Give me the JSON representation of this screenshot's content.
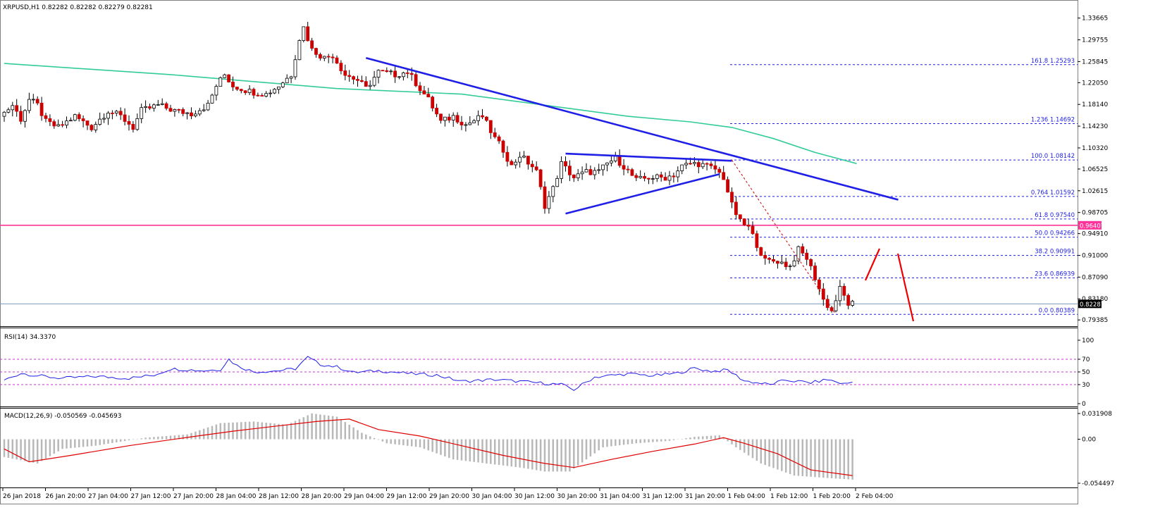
{
  "chart_title": "XRPUSD,H1  0.82282 0.82282 0.82279 0.82281",
  "rsi_title": "RSI(14) 34.3370",
  "macd_title": "MACD(12,26,9) -0.050569 -0.045693",
  "colors": {
    "bull": "#ffffff",
    "bear": "#cc0000",
    "wick": "#000000",
    "ma": "#33cc99",
    "trendline": "#1f1fe6",
    "fib": "#1f1fe6",
    "support": "#ff3399",
    "current": "#7799bb",
    "rsi": "#1f1fe6",
    "rsi_levels": "#cc33cc",
    "macd_hist": "#b8b8b8",
    "macd_signal": "#e00000",
    "arrow": "#ee0000"
  },
  "price_axis": {
    "ticks": [
      "1.33665",
      "1.29755",
      "1.25845",
      "1.22050",
      "1.18140",
      "1.14230",
      "1.10320",
      "1.06525",
      "1.02615",
      "0.98705",
      "0.94910",
      "0.91000",
      "0.87090",
      "0.83180",
      "0.79385"
    ],
    "support_label": "0.96407",
    "current_label": "0.82281"
  },
  "fib_levels": [
    {
      "label": "161.8  1.25293",
      "value": 1.25293
    },
    {
      "label": "1.236  1.14692",
      "value": 1.14692
    },
    {
      "label": "100.0  1.08142",
      "value": 1.08142
    },
    {
      "label": "0.764  1.01592",
      "value": 1.01592
    },
    {
      "label": "61.8  0.97540",
      "value": 0.9754
    },
    {
      "label": "50.0  0.94266",
      "value": 0.94266
    },
    {
      "label": "38.2  0.90991",
      "value": 0.90991
    },
    {
      "label": "23.6  0.86939",
      "value": 0.86939
    },
    {
      "label": "0.0  0.80389",
      "value": 0.80389
    }
  ],
  "time_labels": [
    "26 Jan 2018",
    "26 Jan 20:00",
    "27 Jan 04:00",
    "27 Jan 12:00",
    "27 Jan 20:00",
    "28 Jan 04:00",
    "28 Jan 12:00",
    "28 Jan 20:00",
    "29 Jan 04:00",
    "29 Jan 12:00",
    "29 Jan 20:00",
    "30 Jan 04:00",
    "30 Jan 12:00",
    "30 Jan 20:00",
    "31 Jan 04:00",
    "31 Jan 12:00",
    "31 Jan 20:00",
    "1 Feb 04:00",
    "1 Feb 12:00",
    "1 Feb 20:00",
    "2 Feb 04:00"
  ],
  "rsi_axis": [
    "100",
    "70",
    "50",
    "30",
    "0"
  ],
  "macd_axis": [
    "0.031908",
    "0.00",
    "-0.054497"
  ],
  "chart_data": {
    "type": "candlestick",
    "symbol": "XRPUSD",
    "timeframe": "H1",
    "ylim": [
      0.7865,
      1.3565
    ],
    "anchors": [
      [
        0,
        1.16
      ],
      [
        3,
        1.18
      ],
      [
        5,
        1.155
      ],
      [
        7,
        1.19
      ],
      [
        9,
        1.18
      ],
      [
        11,
        1.15
      ],
      [
        14,
        1.14
      ],
      [
        18,
        1.16
      ],
      [
        22,
        1.14
      ],
      [
        26,
        1.17
      ],
      [
        29,
        1.16
      ],
      [
        32,
        1.14
      ],
      [
        34,
        1.17
      ],
      [
        38,
        1.18
      ],
      [
        42,
        1.17
      ],
      [
        46,
        1.165
      ],
      [
        50,
        1.18
      ],
      [
        52,
        1.215
      ],
      [
        54,
        1.235
      ],
      [
        56,
        1.215
      ],
      [
        60,
        1.205
      ],
      [
        64,
        1.2
      ],
      [
        67,
        1.215
      ],
      [
        70,
        1.235
      ],
      [
        72,
        1.3
      ],
      [
        73,
        1.32
      ],
      [
        75,
        1.28
      ],
      [
        78,
        1.265
      ],
      [
        80,
        1.27
      ],
      [
        83,
        1.235
      ],
      [
        86,
        1.225
      ],
      [
        88,
        1.21
      ],
      [
        91,
        1.24
      ],
      [
        95,
        1.235
      ],
      [
        98,
        1.24
      ],
      [
        100,
        1.22
      ],
      [
        103,
        1.19
      ],
      [
        106,
        1.15
      ],
      [
        109,
        1.16
      ],
      [
        112,
        1.145
      ],
      [
        116,
        1.16
      ],
      [
        119,
        1.12
      ],
      [
        121,
        1.1
      ],
      [
        123,
        1.07
      ],
      [
        125,
        1.09
      ],
      [
        128,
        1.07
      ],
      [
        129,
        1.06
      ],
      [
        131,
        1.0
      ],
      [
        133,
        1.03
      ],
      [
        135,
        1.075
      ],
      [
        138,
        1.05
      ],
      [
        141,
        1.06
      ],
      [
        144,
        1.06
      ],
      [
        146,
        1.075
      ],
      [
        148,
        1.085
      ],
      [
        150,
        1.07
      ],
      [
        153,
        1.045
      ],
      [
        156,
        1.05
      ],
      [
        160,
        1.05
      ],
      [
        162,
        1.055
      ],
      [
        164,
        1.07
      ],
      [
        166,
        1.075
      ],
      [
        168,
        1.075
      ],
      [
        170,
        1.07
      ],
      [
        172,
        1.065
      ],
      [
        174,
        1.05
      ],
      [
        176,
        1.0
      ],
      [
        178,
        0.97
      ],
      [
        180,
        0.96
      ],
      [
        182,
        0.93
      ],
      [
        184,
        0.9
      ],
      [
        187,
        0.9
      ],
      [
        190,
        0.89
      ],
      [
        192,
        0.92
      ],
      [
        194,
        0.905
      ],
      [
        196,
        0.87
      ],
      [
        198,
        0.83
      ],
      [
        200,
        0.81
      ],
      [
        202,
        0.85
      ],
      [
        204,
        0.8228
      ]
    ],
    "ma_200": [
      [
        0,
        1.255
      ],
      [
        40,
        1.235
      ],
      [
        80,
        1.21
      ],
      [
        110,
        1.2
      ],
      [
        130,
        1.18
      ],
      [
        150,
        1.16
      ],
      [
        165,
        1.15
      ],
      [
        175,
        1.14
      ],
      [
        185,
        1.12
      ],
      [
        195,
        1.095
      ],
      [
        205,
        1.075
      ]
    ],
    "rsi": [
      [
        0,
        37
      ],
      [
        4,
        48
      ],
      [
        8,
        44
      ],
      [
        14,
        40
      ],
      [
        22,
        43
      ],
      [
        30,
        40
      ],
      [
        36,
        45
      ],
      [
        40,
        55
      ],
      [
        48,
        52
      ],
      [
        52,
        54
      ],
      [
        54,
        70
      ],
      [
        56,
        60
      ],
      [
        60,
        50
      ],
      [
        66,
        52
      ],
      [
        70,
        55
      ],
      [
        73,
        73
      ],
      [
        76,
        62
      ],
      [
        80,
        58
      ],
      [
        84,
        49
      ],
      [
        90,
        52
      ],
      [
        98,
        47
      ],
      [
        104,
        45
      ],
      [
        110,
        35
      ],
      [
        118,
        38
      ],
      [
        126,
        34
      ],
      [
        134,
        30
      ],
      [
        137,
        22
      ],
      [
        142,
        42
      ],
      [
        150,
        47
      ],
      [
        156,
        44
      ],
      [
        162,
        48
      ],
      [
        166,
        56
      ],
      [
        170,
        51
      ],
      [
        174,
        53
      ],
      [
        178,
        36
      ],
      [
        184,
        30
      ],
      [
        188,
        37
      ],
      [
        194,
        33
      ],
      [
        198,
        38
      ],
      [
        202,
        31
      ],
      [
        204,
        34
      ]
    ],
    "macd_signal": [
      [
        0,
        -0.012
      ],
      [
        6,
        -0.028
      ],
      [
        16,
        -0.02
      ],
      [
        30,
        -0.008
      ],
      [
        45,
        0.003
      ],
      [
        55,
        0.01
      ],
      [
        65,
        0.016
      ],
      [
        75,
        0.022
      ],
      [
        83,
        0.025
      ],
      [
        90,
        0.012
      ],
      [
        100,
        0.004
      ],
      [
        110,
        -0.008
      ],
      [
        120,
        -0.02
      ],
      [
        130,
        -0.03
      ],
      [
        137,
        -0.035
      ],
      [
        146,
        -0.025
      ],
      [
        156,
        -0.015
      ],
      [
        166,
        -0.006
      ],
      [
        173,
        0.002
      ],
      [
        178,
        -0.005
      ],
      [
        186,
        -0.018
      ],
      [
        194,
        -0.038
      ],
      [
        204,
        -0.045
      ]
    ],
    "macd_hist": [
      [
        0,
        -0.022
      ],
      [
        8,
        -0.03
      ],
      [
        14,
        -0.012
      ],
      [
        22,
        -0.008
      ],
      [
        34,
        0.002
      ],
      [
        44,
        0.006
      ],
      [
        52,
        0.02
      ],
      [
        60,
        0.022
      ],
      [
        68,
        0.018
      ],
      [
        74,
        0.032
      ],
      [
        80,
        0.028
      ],
      [
        86,
        0.008
      ],
      [
        92,
        -0.005
      ],
      [
        100,
        -0.01
      ],
      [
        108,
        -0.025
      ],
      [
        116,
        -0.03
      ],
      [
        124,
        -0.035
      ],
      [
        130,
        -0.04
      ],
      [
        136,
        -0.04
      ],
      [
        144,
        -0.01
      ],
      [
        152,
        -0.005
      ],
      [
        160,
        -0.002
      ],
      [
        166,
        0.003
      ],
      [
        172,
        0.005
      ],
      [
        176,
        -0.01
      ],
      [
        182,
        -0.03
      ],
      [
        190,
        -0.045
      ],
      [
        198,
        -0.048
      ],
      [
        204,
        -0.05
      ]
    ],
    "annotations": {
      "support_price": 0.96407,
      "current_price": 0.82281,
      "triangle_upper": [
        [
          135,
          1.093
        ],
        [
          175,
          1.08
        ]
      ],
      "triangle_lower": [
        [
          135,
          0.985
        ],
        [
          172,
          1.056
        ]
      ],
      "descending_trendline": [
        [
          87,
          1.265
        ],
        [
          215,
          1.01
        ]
      ]
    }
  }
}
